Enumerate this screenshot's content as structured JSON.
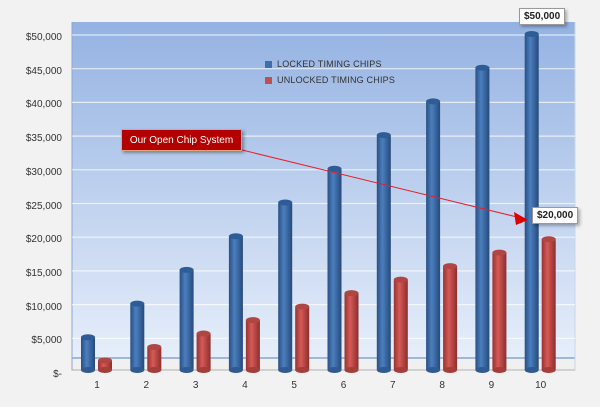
{
  "chart_data": {
    "type": "bar",
    "style": "3d-cylinder",
    "title": "",
    "xlabel": "",
    "ylabel": "",
    "categories": [
      "1",
      "2",
      "3",
      "4",
      "5",
      "6",
      "7",
      "8",
      "9",
      "10"
    ],
    "series": [
      {
        "name": "LOCKED TIMING CHIPS",
        "color": "#3d6fad",
        "values": [
          5000,
          10000,
          15000,
          20000,
          25000,
          30000,
          35000,
          40000,
          45000,
          50000
        ]
      },
      {
        "name": "UNLOCKED TIMING CHIPS",
        "color": "#c0504d",
        "values": [
          2000,
          4000,
          6000,
          8000,
          10000,
          12000,
          14000,
          16000,
          18000,
          20000
        ]
      }
    ],
    "ylim": [
      0,
      50000
    ],
    "yticks": [
      "$-",
      "$5,000",
      "$10,000",
      "$15,000",
      "$20,000",
      "$25,000",
      "$30,000",
      "$35,000",
      "$40,000",
      "$45,000",
      "$50,000"
    ],
    "grid": true,
    "legend_position": "top-center-inside",
    "annotations": [
      {
        "text": "$50,000",
        "target": "LOCKED TIMING CHIPS, category 10"
      },
      {
        "text": "$20,000",
        "target": "UNLOCKED TIMING CHIPS, category 10"
      },
      {
        "text": "Our Open Chip System",
        "type": "callout-with-arrow",
        "arrow_to": "$20,000 label"
      }
    ]
  },
  "legend": {
    "locked": "LOCKED TIMING CHIPS",
    "unlocked": "UNLOCKED TIMING CHIPS"
  },
  "callout": {
    "text": "Our Open Chip System"
  },
  "labels": {
    "top_locked": "$50,000",
    "top_unlocked": "$20,000"
  },
  "colors": {
    "locked": "#3d6fad",
    "unlocked": "#c0504d",
    "callout_bg": "#b30000",
    "arrow": "#e8202a"
  }
}
